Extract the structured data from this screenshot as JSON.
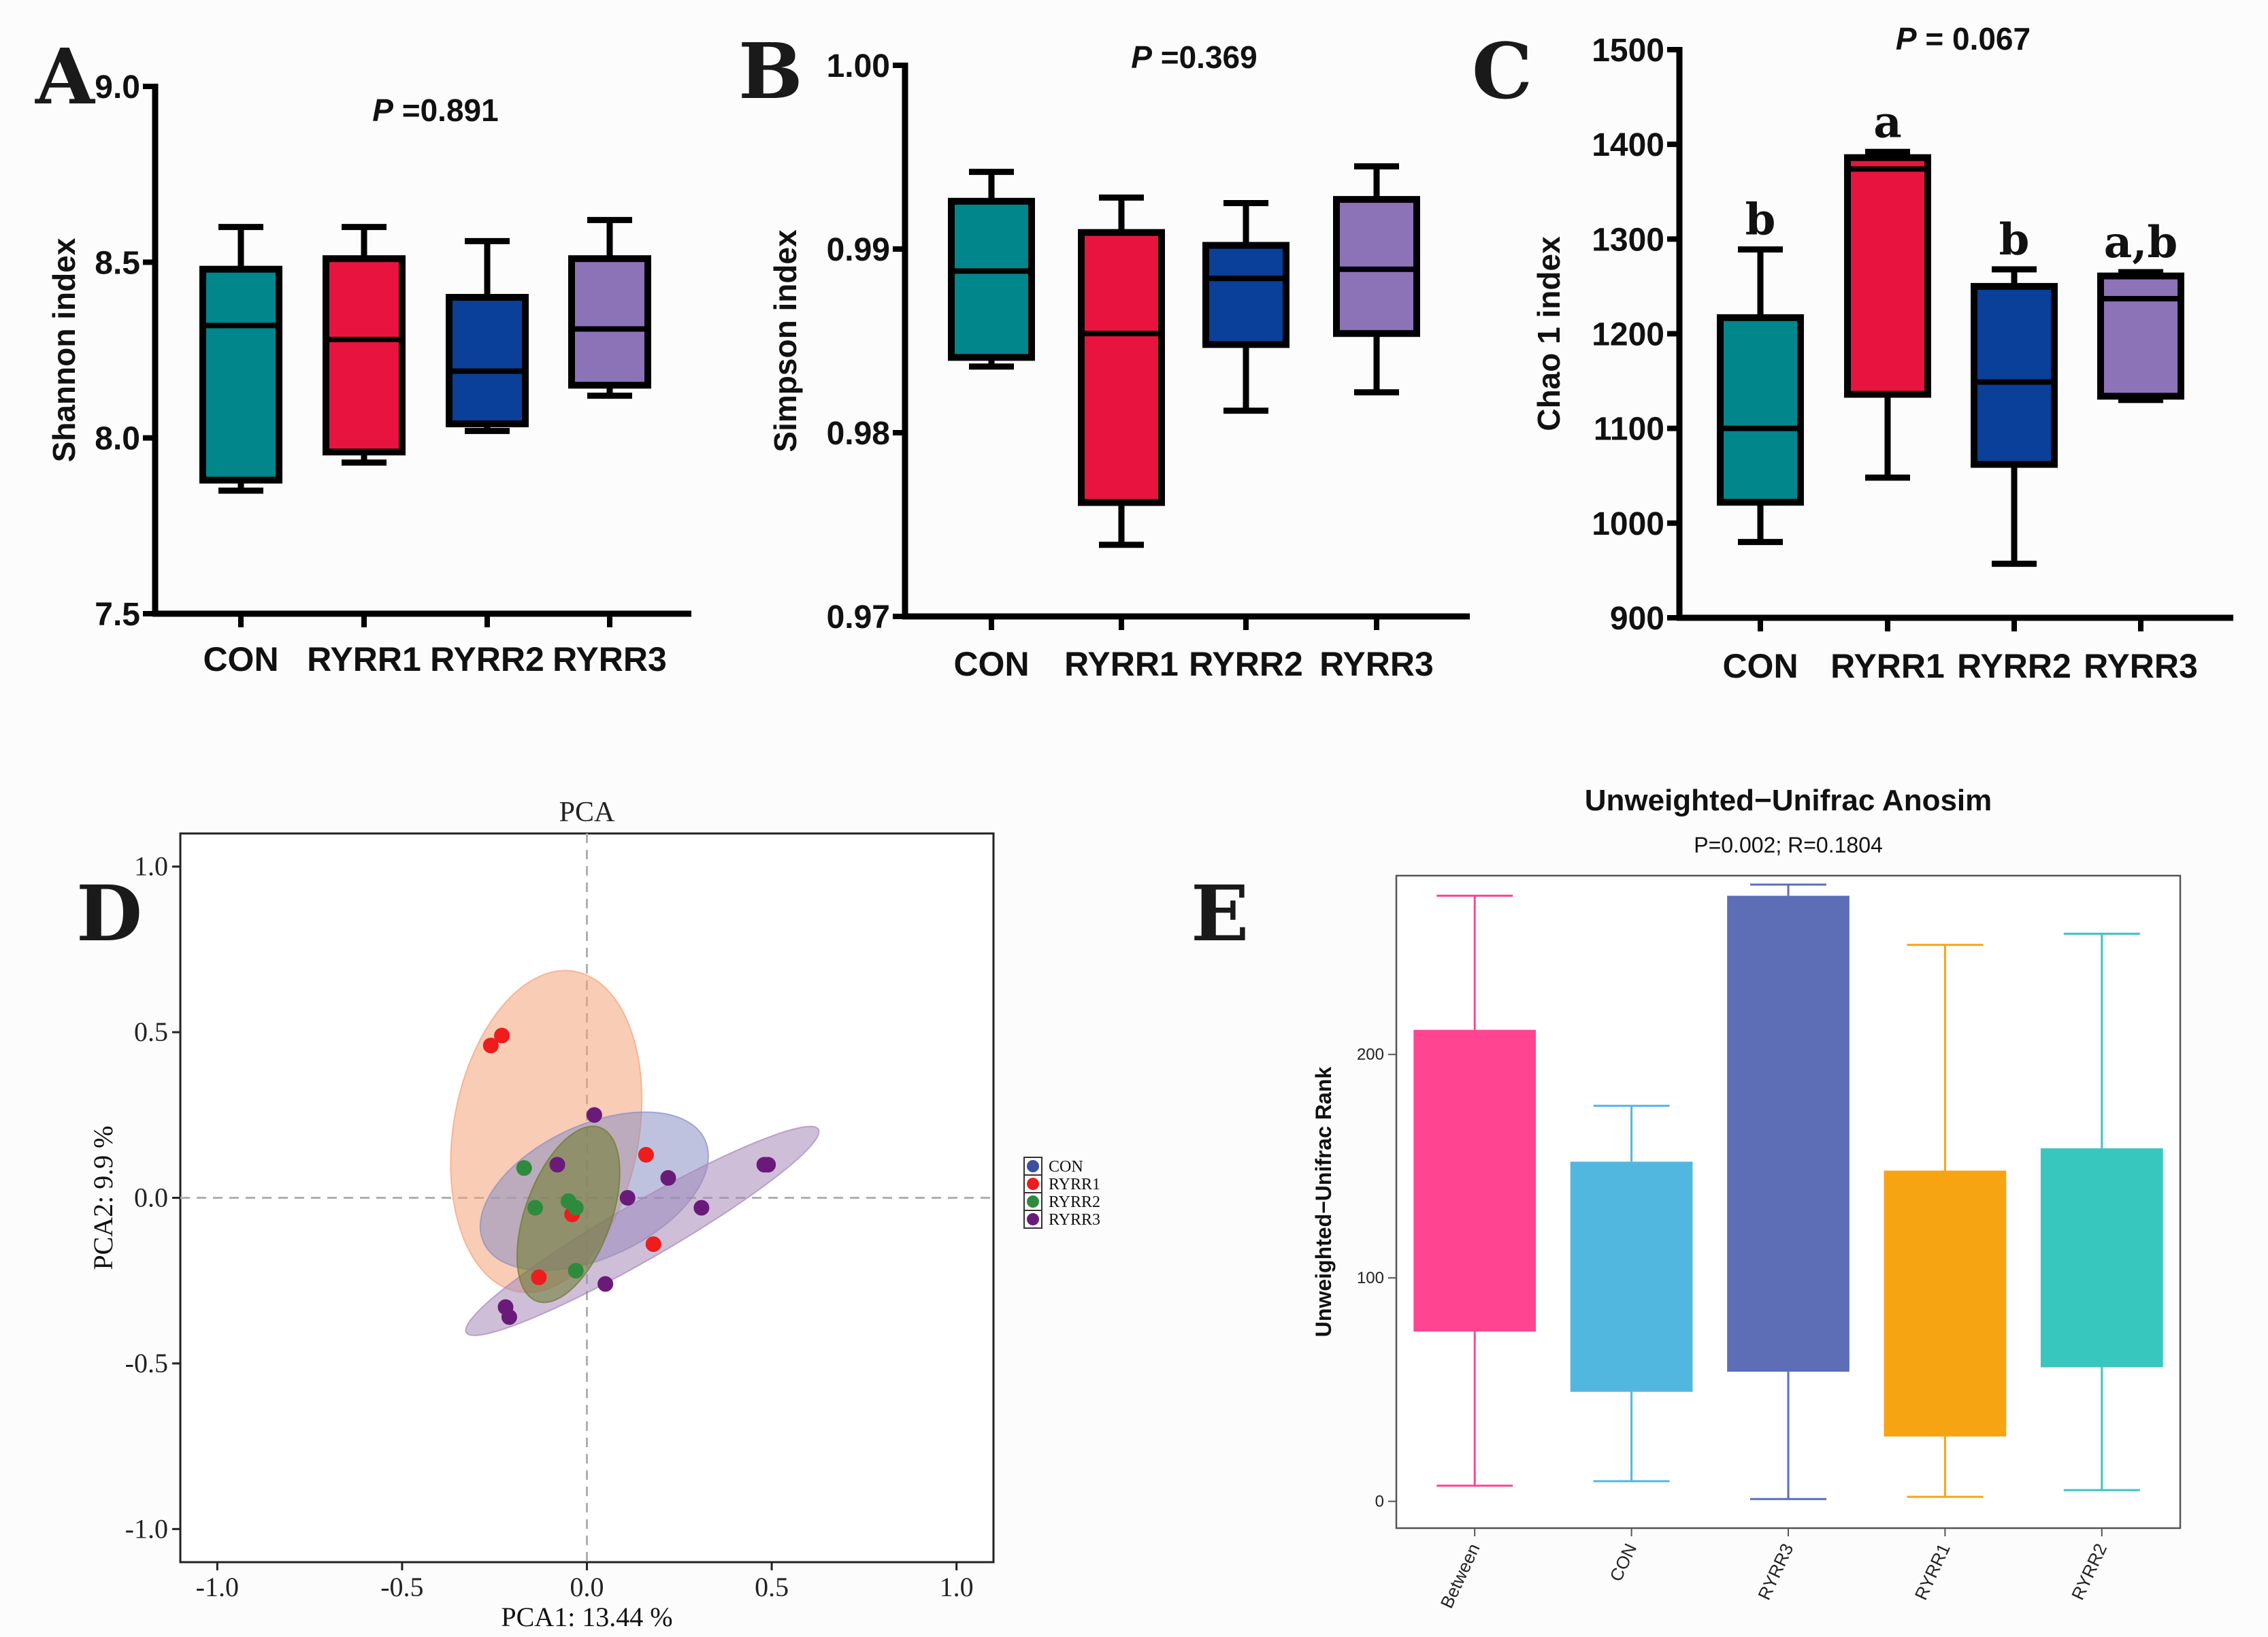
{
  "chart_data": [
    {
      "panel": "A",
      "type": "box",
      "ylabel": "Shannon index",
      "annotation": "P =0.891",
      "annotation_prefix": "P",
      "annotation_value": " =0.891",
      "ylim": [
        7.5,
        9.0
      ],
      "yticks": [
        7.5,
        8.0,
        8.5,
        9.0
      ],
      "ytick_labels": [
        "7.5",
        "8.0",
        "8.5",
        "9.0"
      ],
      "categories": [
        "CON",
        "RYRR1",
        "RYRR2",
        "RYRR3"
      ],
      "colors": [
        "#00868b",
        "#e8143f",
        "#0a3f9a",
        "#8c73b8"
      ],
      "boxes": [
        {
          "min": 7.85,
          "q1": 7.88,
          "median": 8.32,
          "q3": 8.48,
          "max": 8.6
        },
        {
          "min": 7.93,
          "q1": 7.96,
          "median": 8.28,
          "q3": 8.51,
          "max": 8.6
        },
        {
          "min": 8.02,
          "q1": 8.04,
          "median": 8.19,
          "q3": 8.4,
          "max": 8.56
        },
        {
          "min": 8.12,
          "q1": 8.15,
          "median": 8.31,
          "q3": 8.51,
          "max": 8.62
        }
      ]
    },
    {
      "panel": "B",
      "type": "box",
      "ylabel": "Simpson index",
      "annotation": "P =0.369",
      "annotation_prefix": "P",
      "annotation_value": " =0.369",
      "ylim": [
        0.97,
        1.0
      ],
      "yticks": [
        0.97,
        0.98,
        0.99,
        1.0
      ],
      "ytick_labels": [
        "0.97",
        "0.98",
        "0.99",
        "1.00"
      ],
      "categories": [
        "CON",
        "RYRR1",
        "RYRR2",
        "RYRR3"
      ],
      "colors": [
        "#00868b",
        "#e8143f",
        "#0a3f9a",
        "#8c73b8"
      ],
      "boxes": [
        {
          "min": 0.9836,
          "q1": 0.9841,
          "median": 0.9888,
          "q3": 0.9926,
          "max": 0.9942
        },
        {
          "min": 0.9739,
          "q1": 0.9762,
          "median": 0.9854,
          "q3": 0.9909,
          "max": 0.9928
        },
        {
          "min": 0.9812,
          "q1": 0.9848,
          "median": 0.9884,
          "q3": 0.9902,
          "max": 0.9925
        },
        {
          "min": 0.9822,
          "q1": 0.9854,
          "median": 0.9889,
          "q3": 0.9927,
          "max": 0.9945
        }
      ]
    },
    {
      "panel": "C",
      "type": "box",
      "ylabel": "Chao 1 index",
      "annotation": "P = 0.067",
      "annotation_prefix": "P",
      "annotation_value": " = 0.067",
      "ylim": [
        900,
        1500
      ],
      "yticks": [
        900,
        1000,
        1100,
        1200,
        1300,
        1400,
        1500
      ],
      "ytick_labels": [
        "900",
        "1000",
        "1100",
        "1200",
        "1300",
        "1400",
        "1500"
      ],
      "categories": [
        "CON",
        "RYRR1",
        "RYRR2",
        "RYRR3"
      ],
      "colors": [
        "#00868b",
        "#e8143f",
        "#0a3f9a",
        "#8c73b8"
      ],
      "significance": [
        "b",
        "a",
        "b",
        "a,b"
      ],
      "boxes": [
        {
          "min": 980,
          "q1": 1022,
          "median": 1100,
          "q3": 1217,
          "max": 1289
        },
        {
          "min": 1048,
          "q1": 1136,
          "median": 1374,
          "q3": 1386,
          "max": 1392
        },
        {
          "min": 957,
          "q1": 1062,
          "median": 1149,
          "q3": 1250,
          "max": 1268
        },
        {
          "min": 1130,
          "q1": 1134,
          "median": 1237,
          "q3": 1261,
          "max": 1265
        }
      ]
    },
    {
      "panel": "D",
      "type": "scatter",
      "title": "PCA",
      "xlabel": "PCA1: 13.44 %",
      "ylabel": "PCA2: 9.9 %",
      "xlim": [
        -1.1,
        1.1
      ],
      "ylim": [
        -1.1,
        1.1
      ],
      "xticks": [
        -1.0,
        -0.5,
        0.0,
        0.5,
        1.0
      ],
      "xtick_labels": [
        "-1.0",
        "-0.5",
        "0.0",
        "0.5",
        "1.0"
      ],
      "yticks": [
        -1.0,
        -0.5,
        0.0,
        0.5,
        1.0
      ],
      "ytick_labels": [
        "-1.0",
        "-0.5",
        "0.0",
        "0.5",
        "1.0"
      ],
      "legend": [
        "CON",
        "RYRR1",
        "RYRR2",
        "RYRR3"
      ],
      "series": [
        {
          "name": "CON",
          "color": "#3d4f9e",
          "ellipse_color": "#8a8fc2",
          "ellipse": {
            "cx": 0.02,
            "cy": 0.02,
            "rx": 0.33,
            "ry": 0.2,
            "angle_deg": 25
          },
          "points": []
        },
        {
          "name": "RYRR1",
          "color": "#ee1c1c",
          "ellipse_color": "#f4a27a",
          "ellipse": {
            "cx": -0.11,
            "cy": 0.2,
            "rx": 0.44,
            "ry": 0.28,
            "angle_deg": 80
          },
          "points": [
            [
              -0.26,
              0.46
            ],
            [
              -0.23,
              0.49
            ],
            [
              0.16,
              0.13
            ],
            [
              -0.04,
              -0.05
            ],
            [
              -0.13,
              -0.24
            ],
            [
              0.18,
              -0.14
            ]
          ]
        },
        {
          "name": "RYRR2",
          "color": "#2e8b3e",
          "ellipse_color": "#6b7a2a",
          "ellipse": {
            "cx": -0.05,
            "cy": -0.05,
            "rx": 0.25,
            "ry": 0.13,
            "angle_deg": 70
          },
          "points": [
            [
              -0.17,
              0.09
            ],
            [
              -0.14,
              -0.03
            ],
            [
              -0.05,
              -0.01
            ],
            [
              -0.03,
              -0.03
            ],
            [
              -0.03,
              -0.22
            ]
          ]
        },
        {
          "name": "RYRR3",
          "color": "#6a1b7a",
          "ellipse_color": "#a888b8",
          "ellipse": {
            "cx": 0.15,
            "cy": -0.1,
            "rx": 0.55,
            "ry": 0.085,
            "angle_deg": 30
          },
          "points": [
            [
              -0.22,
              -0.33
            ],
            [
              -0.21,
              -0.36
            ],
            [
              0.02,
              0.25
            ],
            [
              -0.08,
              0.1
            ],
            [
              0.22,
              0.06
            ],
            [
              0.11,
              0.0
            ],
            [
              0.31,
              -0.03
            ],
            [
              0.49,
              0.1
            ],
            [
              0.48,
              0.1
            ],
            [
              0.05,
              -0.26
            ]
          ]
        }
      ]
    },
    {
      "panel": "E",
      "type": "box",
      "title": "Unweighted−Unifrac Anosim",
      "subtitle": "P=0.002; R=0.1804",
      "ylabel": "Unweighted−Unifrac Rank",
      "ylim": [
        -12,
        280
      ],
      "yticks": [
        0,
        100,
        200
      ],
      "ytick_labels": [
        "0",
        "100",
        "200"
      ],
      "categories": [
        "Between",
        "CON",
        "RYRR3",
        "RYRR1",
        "RYRR2"
      ],
      "colors": [
        "#ff4591",
        "#52b7de",
        "#5d6eb6",
        "#f7a413",
        "#38c7be"
      ],
      "boxes": [
        {
          "min": 7,
          "q1": 76,
          "median": 211,
          "q3": 211,
          "max": 271
        },
        {
          "min": 9,
          "q1": 49,
          "median": 152,
          "q3": 152,
          "max": 177
        },
        {
          "min": 1,
          "q1": 58,
          "median": 271,
          "q3": 271,
          "max": 276
        },
        {
          "min": 2,
          "q1": 29,
          "median": 148,
          "q3": 148,
          "max": 249
        },
        {
          "min": 5,
          "q1": 60,
          "median": 158,
          "q3": 158,
          "max": 254
        }
      ]
    }
  ],
  "labels": {
    "panel_a": "A",
    "panel_b": "B",
    "panel_c": "C",
    "panel_d": "D",
    "panel_e": "E"
  }
}
